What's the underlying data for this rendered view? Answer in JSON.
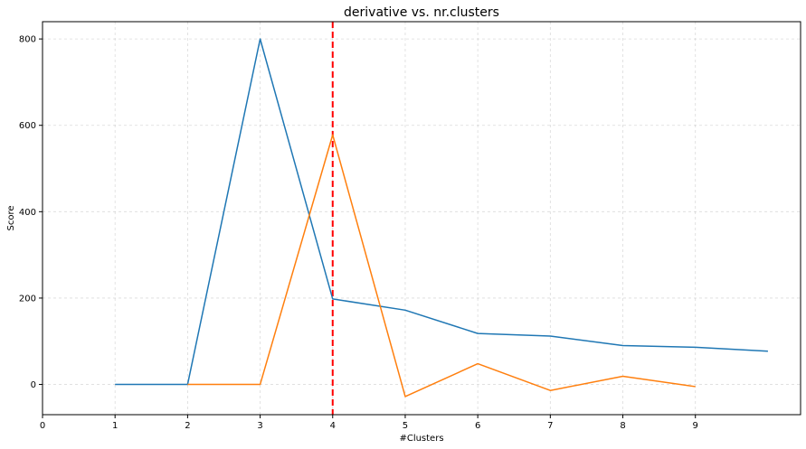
{
  "chart_data": {
    "type": "line",
    "title": "derivative vs. nr.clusters",
    "xlabel": "#Clusters",
    "ylabel": "Score",
    "xlim": [
      0,
      10.45
    ],
    "ylim": [
      -70,
      840
    ],
    "xticks": [
      0,
      1,
      2,
      3,
      4,
      5,
      6,
      7,
      8,
      9
    ],
    "yticks": [
      0,
      200,
      400,
      600,
      800
    ],
    "grid": true,
    "legend": false,
    "series": [
      {
        "color": "#1f77b4",
        "x": [
          1,
          2,
          3,
          4,
          5,
          6,
          7,
          8,
          9,
          10
        ],
        "y": [
          0,
          0,
          800,
          198,
          172,
          118,
          112,
          90,
          86,
          77
        ]
      },
      {
        "color": "#ff7f0e",
        "x": [
          2,
          3,
          4,
          5,
          6,
          7,
          8,
          9
        ],
        "y": [
          0,
          0,
          578,
          -28,
          48,
          -14,
          19,
          -5
        ]
      }
    ],
    "vline": {
      "x": 4,
      "color": "#ff0000",
      "style": "dashed"
    }
  }
}
